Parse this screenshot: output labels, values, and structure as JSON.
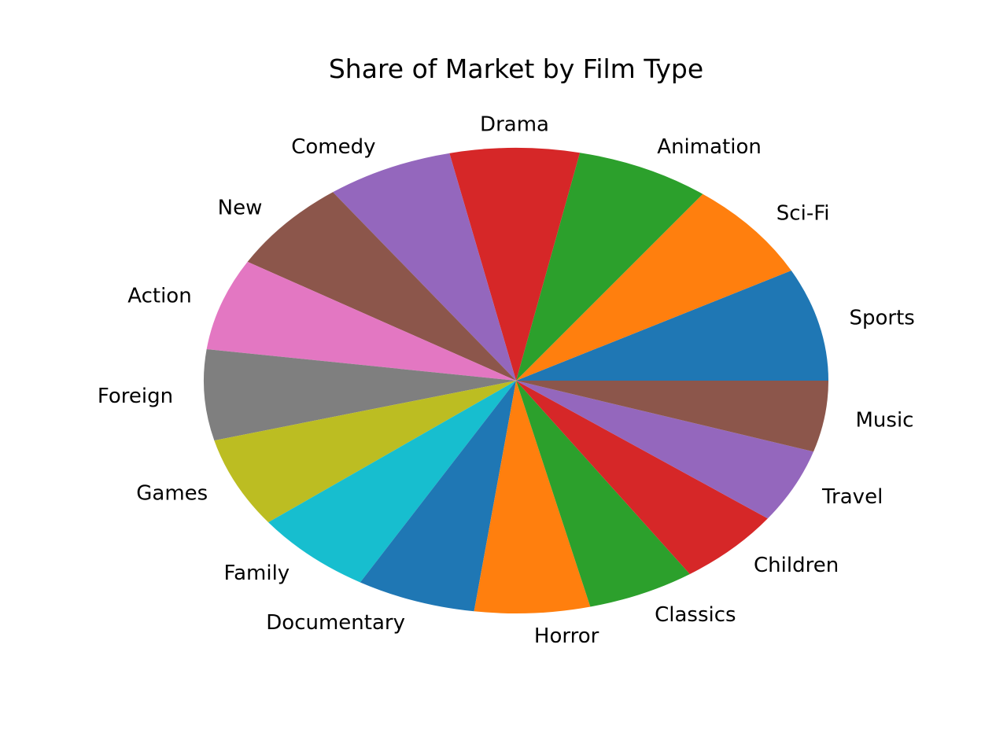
{
  "chart_data": {
    "type": "pie",
    "title": "Share of Market by Film Type",
    "start_angle_deg": 0,
    "direction": "counterclockwise",
    "slices": [
      {
        "label": "Sports",
        "value": 7.88,
        "color": "#1f77b4"
      },
      {
        "label": "Sci-Fi",
        "value": 7.0,
        "color": "#ff7f0e"
      },
      {
        "label": "Animation",
        "value": 6.96,
        "color": "#2ca02c"
      },
      {
        "label": "Drama",
        "value": 6.73,
        "color": "#d62728"
      },
      {
        "label": "Comedy",
        "value": 6.59,
        "color": "#9467bd"
      },
      {
        "label": "New",
        "value": 6.53,
        "color": "#8c564b"
      },
      {
        "label": "Action",
        "value": 6.4,
        "color": "#e377c2"
      },
      {
        "label": "Foreign",
        "value": 6.33,
        "color": "#7f7f7f"
      },
      {
        "label": "Games",
        "value": 6.31,
        "color": "#bcbd22"
      },
      {
        "label": "Family",
        "value": 6.3,
        "color": "#17becf"
      },
      {
        "label": "Documentary",
        "value": 6.2,
        "color": "#1f77b4"
      },
      {
        "label": "Horror",
        "value": 6.0,
        "color": "#ff7f0e"
      },
      {
        "label": "Classics",
        "value": 5.6,
        "color": "#2ca02c"
      },
      {
        "label": "Children",
        "value": 5.55,
        "color": "#d62728"
      },
      {
        "label": "Travel",
        "value": 5.18,
        "color": "#9467bd"
      },
      {
        "label": "Music",
        "value": 4.96,
        "color": "#8c564b"
      }
    ]
  }
}
